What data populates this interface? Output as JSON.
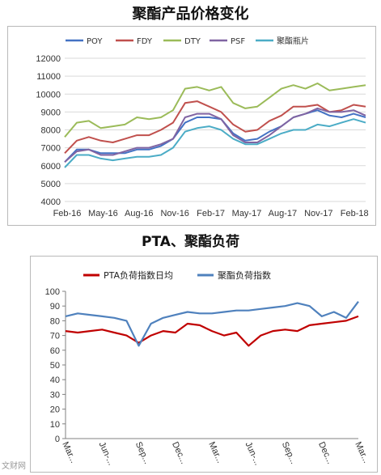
{
  "chart_data": [
    {
      "type": "line",
      "title": "聚酯产品价格变化",
      "xlabel": "",
      "ylabel": "",
      "x_tick_labels": [
        "Feb-16",
        "May-16",
        "Aug-16",
        "Nov-16",
        "Feb-17",
        "May-17",
        "Aug-17",
        "Nov-17",
        "Feb-18"
      ],
      "x_range": [
        "2016-02",
        "2018-03"
      ],
      "ylim": [
        4000,
        12000
      ],
      "y_ticks": [
        4000,
        5000,
        6000,
        7000,
        8000,
        9000,
        10000,
        11000,
        12000
      ],
      "grid": true,
      "legend_position": "top",
      "x": [
        "2016-02",
        "2016-03",
        "2016-04",
        "2016-05",
        "2016-06",
        "2016-07",
        "2016-08",
        "2016-09",
        "2016-10",
        "2016-11",
        "2016-12",
        "2017-01",
        "2017-02",
        "2017-03",
        "2017-04",
        "2017-05",
        "2017-06",
        "2017-07",
        "2017-08",
        "2017-09",
        "2017-10",
        "2017-11",
        "2017-12",
        "2018-01",
        "2018-02",
        "2018-03"
      ],
      "series": [
        {
          "name": "POY",
          "color": "#4472C4",
          "values": [
            6200,
            6900,
            6900,
            6700,
            6700,
            6700,
            6900,
            6900,
            7100,
            7500,
            8400,
            8700,
            8700,
            8600,
            7800,
            7400,
            7500,
            7900,
            8200,
            8700,
            8900,
            9100,
            8800,
            8700,
            8900,
            8700
          ]
        },
        {
          "name": "FDY",
          "color": "#C0504D",
          "values": [
            6700,
            7400,
            7600,
            7400,
            7300,
            7500,
            7700,
            7700,
            8000,
            8400,
            9500,
            9600,
            9300,
            9000,
            8300,
            7900,
            8000,
            8500,
            8800,
            9300,
            9300,
            9400,
            9000,
            9100,
            9400,
            9300
          ]
        },
        {
          "name": "DTY",
          "color": "#9BBB59",
          "values": [
            7600,
            8400,
            8500,
            8100,
            8200,
            8300,
            8700,
            8600,
            8700,
            9100,
            10300,
            10400,
            10200,
            10400,
            9500,
            9200,
            9300,
            9800,
            10300,
            10500,
            10300,
            10600,
            10200,
            10300,
            10400,
            10500
          ]
        },
        {
          "name": "PSF",
          "color": "#8064A2",
          "values": [
            6200,
            6800,
            6900,
            6600,
            6600,
            6800,
            7000,
            7000,
            7200,
            7500,
            8700,
            8900,
            8900,
            8600,
            7700,
            7300,
            7300,
            7700,
            8200,
            8700,
            8900,
            9200,
            9000,
            9000,
            9100,
            8800
          ]
        },
        {
          "name": "聚酯瓶片",
          "color": "#4BACC6",
          "values": [
            5900,
            6600,
            6600,
            6400,
            6300,
            6400,
            6500,
            6500,
            6600,
            7000,
            7900,
            8100,
            8200,
            8000,
            7500,
            7200,
            7200,
            7500,
            7800,
            8000,
            8000,
            8300,
            8200,
            8400,
            8600,
            8400
          ]
        }
      ]
    },
    {
      "type": "line",
      "title": "PTA、聚酯负荷",
      "xlabel": "",
      "ylabel": "",
      "x_tick_labels": [
        "Mar...",
        "Jun-...",
        "Sep...",
        "Dec...",
        "Mar...",
        "Jun-...",
        "Sep...",
        "Dec...",
        "Mar..."
      ],
      "ylim": [
        0,
        100
      ],
      "y_ticks": [
        0,
        10,
        20,
        30,
        40,
        50,
        60,
        70,
        80,
        90,
        100
      ],
      "grid": false,
      "legend_position": "top",
      "x": [
        "2016-03",
        "2016-04",
        "2016-05",
        "2016-06",
        "2016-07",
        "2016-08",
        "2016-09",
        "2016-10",
        "2016-11",
        "2016-12",
        "2017-01",
        "2017-02",
        "2017-03",
        "2017-04",
        "2017-05",
        "2017-06",
        "2017-07",
        "2017-08",
        "2017-09",
        "2017-10",
        "2017-11",
        "2017-12",
        "2018-01",
        "2018-02",
        "2018-03"
      ],
      "series": [
        {
          "name": "PTA负荷指数日均",
          "color": "#C00000",
          "values": [
            73,
            72,
            73,
            74,
            72,
            70,
            65,
            70,
            73,
            72,
            78,
            77,
            73,
            70,
            72,
            63,
            70,
            73,
            74,
            73,
            77,
            78,
            79,
            80,
            83
          ]
        },
        {
          "name": "聚酯负荷指数",
          "color": "#4F81BD",
          "values": [
            83,
            85,
            84,
            83,
            82,
            80,
            63,
            78,
            82,
            84,
            86,
            85,
            85,
            86,
            87,
            87,
            88,
            89,
            90,
            92,
            90,
            83,
            86,
            82,
            93
          ]
        }
      ]
    }
  ],
  "watermark": "文财网"
}
